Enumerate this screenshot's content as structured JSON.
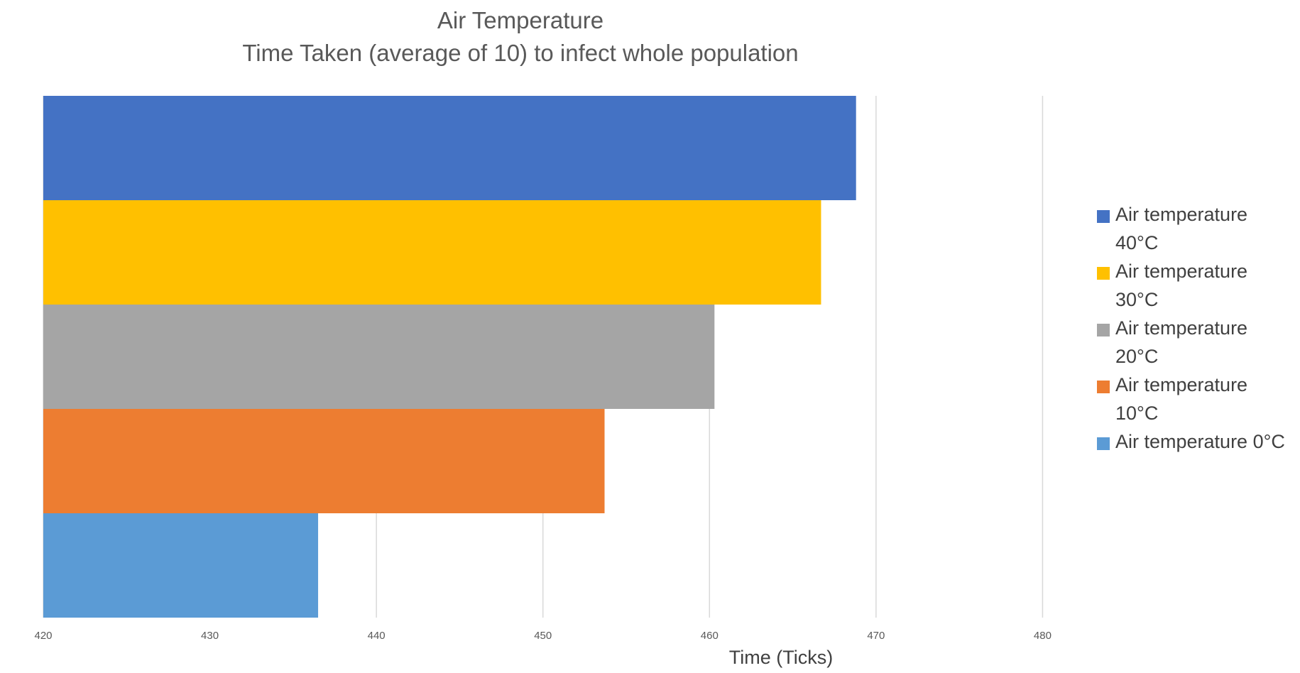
{
  "chart_data": {
    "type": "bar",
    "orientation": "horizontal",
    "title": "Air Temperature",
    "subtitle": "Time Taken (average of 10) to infect whole population",
    "xlabel": "Time (Ticks)",
    "ylabel": "",
    "xlim": [
      420,
      490
    ],
    "xticks": [
      "420",
      "430",
      "440",
      "450",
      "460",
      "470",
      "480"
    ],
    "grid": true,
    "legend_position": "right",
    "series": [
      {
        "name": "Air temperature 40°C",
        "value": 468.8,
        "color": "#4472C4"
      },
      {
        "name": "Air temperature 30°C",
        "value": 466.7,
        "color": "#FFC000"
      },
      {
        "name": "Air temperature 20°C",
        "value": 460.3,
        "color": "#A5A5A5"
      },
      {
        "name": "Air temperature 10°C",
        "value": 453.7,
        "color": "#ED7D31"
      },
      {
        "name": "Air temperature 0°C",
        "value": 436.5,
        "color": "#5B9BD5"
      }
    ]
  }
}
